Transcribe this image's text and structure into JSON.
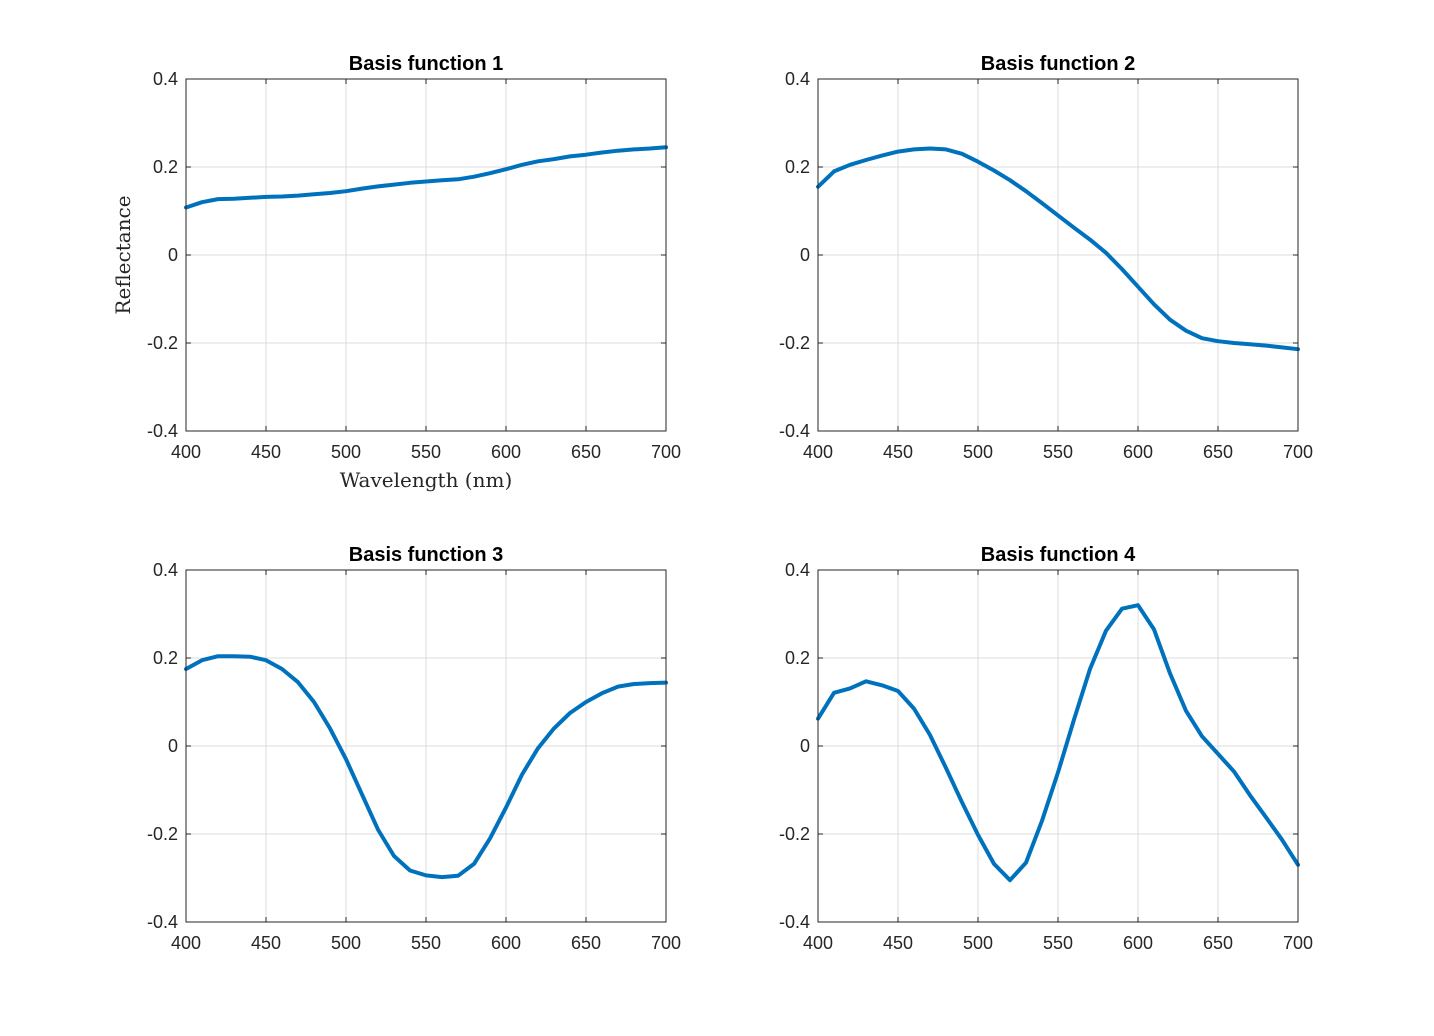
{
  "chart_data": [
    {
      "type": "line",
      "title": "Basis function 1",
      "xlabel": "Wavelength (nm)",
      "ylabel": "Reflectance",
      "xlim": [
        400,
        700
      ],
      "ylim": [
        -0.4,
        0.4
      ],
      "xticks": [
        "400",
        "450",
        "500",
        "550",
        "600",
        "650",
        "700"
      ],
      "yticks": [
        "-0.4",
        "-0.2",
        "0",
        "0.2",
        "0.4"
      ],
      "grid": true,
      "color": "#0072BD",
      "x": [
        400,
        410,
        420,
        430,
        440,
        450,
        460,
        470,
        480,
        490,
        500,
        510,
        520,
        530,
        540,
        550,
        560,
        570,
        580,
        590,
        600,
        610,
        620,
        630,
        640,
        650,
        660,
        670,
        680,
        690,
        700
      ],
      "y": [
        0.108,
        0.12,
        0.127,
        0.128,
        0.13,
        0.132,
        0.133,
        0.135,
        0.138,
        0.141,
        0.145,
        0.151,
        0.156,
        0.16,
        0.164,
        0.167,
        0.17,
        0.172,
        0.178,
        0.186,
        0.195,
        0.205,
        0.213,
        0.218,
        0.224,
        0.228,
        0.233,
        0.237,
        0.24,
        0.242,
        0.245
      ]
    },
    {
      "type": "line",
      "title": "Basis function 2",
      "xlabel": "",
      "ylabel": "",
      "xlim": [
        400,
        700
      ],
      "ylim": [
        -0.4,
        0.4
      ],
      "xticks": [
        "400",
        "450",
        "500",
        "550",
        "600",
        "650",
        "700"
      ],
      "yticks": [
        "-0.4",
        "-0.2",
        "0",
        "0.2",
        "0.4"
      ],
      "grid": true,
      "color": "#0072BD",
      "x": [
        400,
        410,
        420,
        430,
        440,
        450,
        460,
        470,
        480,
        490,
        500,
        510,
        520,
        530,
        540,
        550,
        560,
        570,
        580,
        590,
        600,
        610,
        620,
        630,
        640,
        650,
        660,
        670,
        680,
        690,
        700
      ],
      "y": [
        0.155,
        0.19,
        0.205,
        0.216,
        0.226,
        0.235,
        0.24,
        0.242,
        0.24,
        0.23,
        0.212,
        0.192,
        0.17,
        0.145,
        0.118,
        0.09,
        0.062,
        0.035,
        0.005,
        -0.032,
        -0.072,
        -0.112,
        -0.147,
        -0.172,
        -0.189,
        -0.196,
        -0.2,
        -0.203,
        -0.206,
        -0.21,
        -0.214
      ]
    },
    {
      "type": "line",
      "title": "Basis function 3",
      "xlabel": "",
      "ylabel": "",
      "xlim": [
        400,
        700
      ],
      "ylim": [
        -0.4,
        0.4
      ],
      "xticks": [
        "400",
        "450",
        "500",
        "550",
        "600",
        "650",
        "700"
      ],
      "yticks": [
        "-0.4",
        "-0.2",
        "0",
        "0.2",
        "0.4"
      ],
      "grid": true,
      "color": "#0072BD",
      "x": [
        400,
        410,
        420,
        430,
        440,
        450,
        460,
        470,
        480,
        490,
        500,
        510,
        520,
        530,
        540,
        550,
        560,
        570,
        580,
        590,
        600,
        610,
        620,
        630,
        640,
        650,
        660,
        670,
        680,
        690,
        700
      ],
      "y": [
        0.175,
        0.195,
        0.204,
        0.204,
        0.203,
        0.195,
        0.175,
        0.145,
        0.1,
        0.04,
        -0.03,
        -0.11,
        -0.19,
        -0.25,
        -0.283,
        -0.294,
        -0.298,
        -0.295,
        -0.268,
        -0.21,
        -0.14,
        -0.065,
        -0.005,
        0.04,
        0.075,
        0.1,
        0.12,
        0.135,
        0.141,
        0.143,
        0.144
      ]
    },
    {
      "type": "line",
      "title": "Basis function 4",
      "xlabel": "",
      "ylabel": "",
      "xlim": [
        400,
        700
      ],
      "ylim": [
        -0.4,
        0.4
      ],
      "xticks": [
        "400",
        "450",
        "500",
        "550",
        "600",
        "650",
        "700"
      ],
      "yticks": [
        "-0.4",
        "-0.2",
        "0",
        "0.2",
        "0.4"
      ],
      "grid": true,
      "color": "#0072BD",
      "x": [
        400,
        410,
        420,
        430,
        440,
        450,
        460,
        470,
        480,
        490,
        500,
        510,
        520,
        530,
        540,
        550,
        560,
        570,
        580,
        590,
        600,
        610,
        620,
        630,
        640,
        650,
        660,
        670,
        680,
        690,
        700
      ],
      "y": [
        0.062,
        0.121,
        0.131,
        0.147,
        0.138,
        0.125,
        0.085,
        0.025,
        -0.05,
        -0.128,
        -0.202,
        -0.268,
        -0.305,
        -0.265,
        -0.17,
        -0.06,
        0.06,
        0.175,
        0.262,
        0.312,
        0.32,
        0.265,
        0.165,
        0.08,
        0.022,
        -0.018,
        -0.058,
        -0.112,
        -0.162,
        -0.213,
        -0.27
      ]
    }
  ]
}
